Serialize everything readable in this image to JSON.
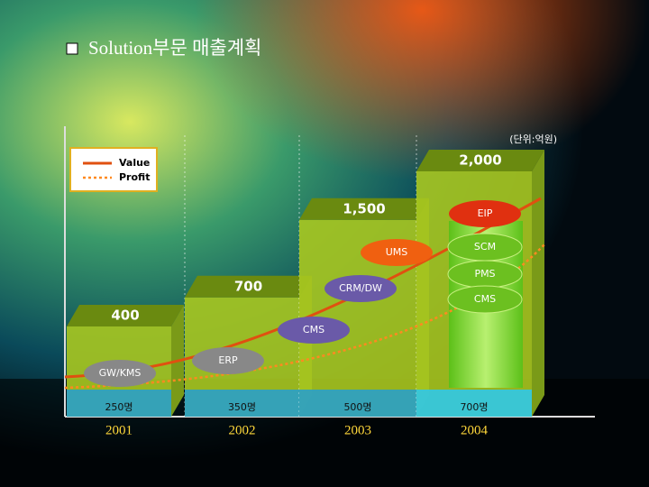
{
  "chart_data": {
    "type": "bar",
    "title": "Solution부문 매출계획",
    "unit": "(단위:억원)",
    "categories": [
      "2001",
      "2002",
      "2003",
      "2004"
    ],
    "values": [
      400,
      700,
      1500,
      2000
    ],
    "value_labels": [
      "400",
      "700",
      "1,500",
      "2,000"
    ],
    "color": "#a8c820",
    "headcount": [
      "250명",
      "350명",
      "500명",
      "700명"
    ],
    "legend": [
      "Value",
      "Profit"
    ],
    "solutions": [
      "GW/KMS",
      "ERP",
      "CMS",
      "CRM/DW",
      "UMS",
      "EIP",
      "SCM",
      "PMS",
      "CMS"
    ]
  }
}
